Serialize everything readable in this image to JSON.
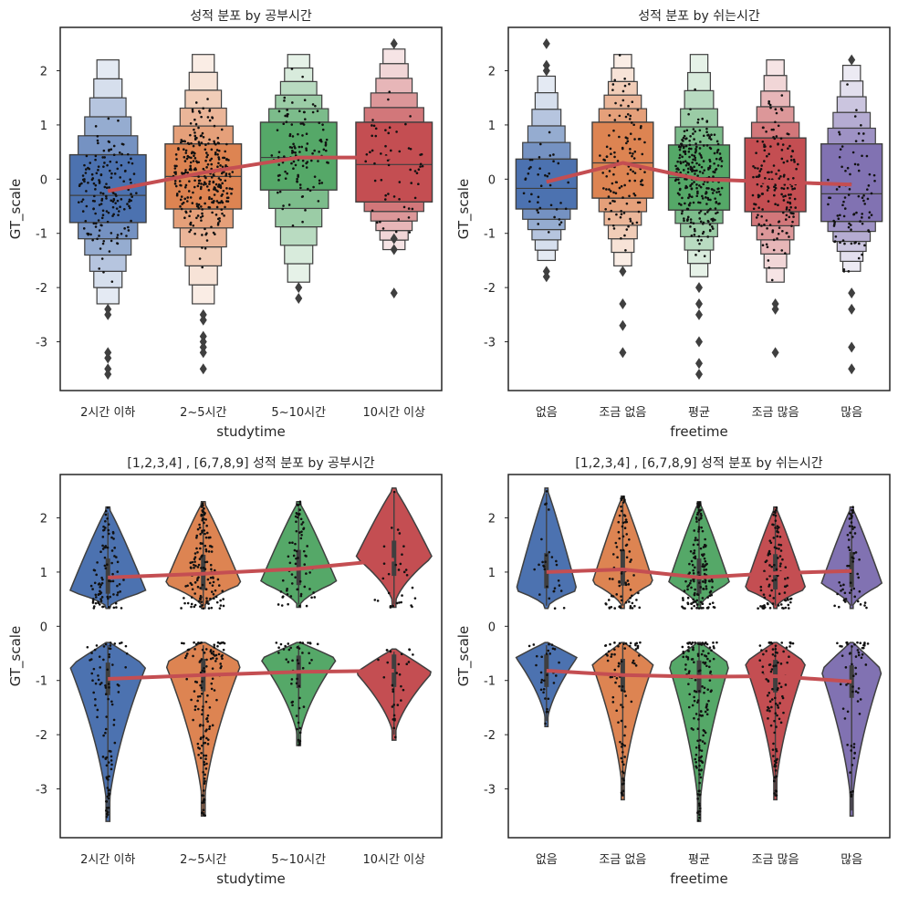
{
  "chart_data": [
    {
      "type": "boxenplot",
      "title": "성적 분포 by 공부시간",
      "xlabel": "studytime",
      "ylabel": "GT_scale",
      "ylim": [
        -3.9,
        2.8
      ],
      "yticks": [
        -3,
        -2,
        -1,
        0,
        1,
        2
      ],
      "grid": false,
      "categories": [
        "2시간 이하",
        "2~5시간",
        "5~10시간",
        "10시간 이상"
      ],
      "colors": [
        "#4c72b0",
        "#dd8452",
        "#55a868",
        "#c44e52"
      ],
      "medians": [
        -0.3,
        0.05,
        0.4,
        0.27
      ],
      "quartiles": [
        [
          -0.8,
          0.45
        ],
        [
          -0.55,
          0.65
        ],
        [
          -0.2,
          1.05
        ],
        [
          -0.42,
          1.05
        ]
      ],
      "ranges": [
        [
          -2.3,
          2.2
        ],
        [
          -2.3,
          2.3
        ],
        [
          -1.9,
          2.3
        ],
        [
          -1.3,
          2.4
        ]
      ],
      "outliers": [
        [
          -2.4,
          -2.5,
          -3.2,
          -3.3,
          -3.5,
          -3.6
        ],
        [
          -2.5,
          -2.6,
          -2.9,
          -3.0,
          -3.1,
          -3.2,
          -3.5
        ],
        [
          -2.0,
          -2.2
        ],
        [
          -1.1,
          -1.3,
          -2.1,
          2.5
        ]
      ],
      "mean_line": [
        -0.22,
        0.12,
        0.4,
        0.4
      ],
      "point_counts": [
        170,
        300,
        120,
        60
      ]
    },
    {
      "type": "boxenplot",
      "title": "성적 분포 by 쉬는시간",
      "xlabel": "freetime",
      "ylabel": "GT_scale",
      "ylim": [
        -3.9,
        2.8
      ],
      "yticks": [
        -3,
        -2,
        -1,
        0,
        1,
        2
      ],
      "grid": false,
      "categories": [
        "없음",
        "조금 없음",
        "평균",
        "조금 많음",
        "많음"
      ],
      "colors": [
        "#4c72b0",
        "#dd8452",
        "#55a868",
        "#c44e52",
        "#8172b2"
      ],
      "medians": [
        -0.17,
        0.3,
        0.03,
        -0.05,
        -0.27
      ],
      "quartiles": [
        [
          -0.55,
          0.37
        ],
        [
          -0.35,
          1.05
        ],
        [
          -0.57,
          0.63
        ],
        [
          -0.6,
          0.76
        ],
        [
          -0.78,
          0.65
        ]
      ],
      "ranges": [
        [
          -1.5,
          1.9
        ],
        [
          -1.6,
          2.3
        ],
        [
          -1.8,
          2.3
        ],
        [
          -1.9,
          2.2
        ],
        [
          -1.7,
          2.1
        ]
      ],
      "outliers": [
        [
          -1.7,
          -1.8,
          2.0,
          2.1,
          2.5
        ],
        [
          -1.7,
          -2.3,
          -2.7,
          -3.2
        ],
        [
          -2.0,
          -2.3,
          -2.5,
          -3.0,
          -3.4,
          -3.6
        ],
        [
          -2.3,
          -2.4,
          -3.2
        ],
        [
          -2.1,
          -2.4,
          -3.1,
          -3.5,
          2.2
        ]
      ],
      "mean_line": [
        -0.05,
        0.3,
        0.0,
        -0.05,
        -0.1
      ],
      "point_counts": [
        40,
        120,
        280,
        170,
        90
      ]
    },
    {
      "type": "violinplot",
      "title": "[1,2,3,4] , [6,7,8,9] 성적 분포 by 공부시간",
      "xlabel": "studytime",
      "ylabel": "GT_scale",
      "ylim": [
        -3.9,
        2.8
      ],
      "yticks": [
        -3,
        -2,
        -1,
        0,
        1,
        2
      ],
      "grid": false,
      "categories": [
        "2시간 이하",
        "2~5시간",
        "5~10시간",
        "10시간 이상"
      ],
      "colors": [
        "#4c72b0",
        "#dd8452",
        "#55a868",
        "#c44e52"
      ],
      "upper": [
        [
          0.33,
          2.2,
          0.72
        ],
        [
          0.33,
          2.3,
          0.62
        ],
        [
          0.35,
          2.3,
          0.6
        ],
        [
          0.35,
          2.55,
          0.3
        ]
      ],
      "lower": [
        [
          -3.6,
          -0.3,
          0.33
        ],
        [
          -3.5,
          -0.3,
          0.3
        ],
        [
          -2.2,
          -0.3,
          0.4
        ],
        [
          -2.1,
          -0.42,
          0.65
        ]
      ],
      "mean_upper": [
        0.9,
        0.97,
        1.06,
        1.23
      ],
      "mean_lower": [
        -0.97,
        -0.9,
        -0.84,
        -0.82
      ],
      "point_counts_upper": [
        90,
        140,
        70,
        30
      ],
      "point_counts_lower": [
        90,
        140,
        50,
        30
      ]
    },
    {
      "type": "violinplot",
      "title": "[1,2,3,4] , [6,7,8,9] 성적 분포 by 쉬는시간",
      "xlabel": "freetime",
      "ylabel": "GT_scale",
      "ylim": [
        -3.9,
        2.8
      ],
      "yticks": [
        -3,
        -2,
        -1,
        0,
        1,
        2
      ],
      "grid": false,
      "categories": [
        "없음",
        "조금 없음",
        "평균",
        "조금 많음",
        "많음"
      ],
      "colors": [
        "#4c72b0",
        "#dd8452",
        "#55a868",
        "#c44e52",
        "#8172b2"
      ],
      "upper": [
        [
          0.33,
          2.55,
          0.75
        ],
        [
          0.33,
          2.4,
          0.62
        ],
        [
          0.33,
          2.3,
          0.6
        ],
        [
          0.33,
          2.2,
          0.68
        ],
        [
          0.33,
          2.2,
          0.6
        ]
      ],
      "lower": [
        [
          -1.85,
          -0.3,
          0.45
        ],
        [
          -3.2,
          -0.3,
          0.35
        ],
        [
          -3.6,
          -0.3,
          0.3
        ],
        [
          -3.2,
          -0.3,
          0.32
        ],
        [
          -3.5,
          -0.3,
          0.4
        ]
      ],
      "mean_upper": [
        1.0,
        1.05,
        0.9,
        0.98,
        1.02
      ],
      "mean_lower": [
        -0.82,
        -0.9,
        -0.93,
        -0.92,
        -1.02
      ],
      "point_counts_upper": [
        30,
        80,
        150,
        100,
        60
      ],
      "point_counts_lower": [
        30,
        80,
        150,
        100,
        60
      ]
    }
  ]
}
